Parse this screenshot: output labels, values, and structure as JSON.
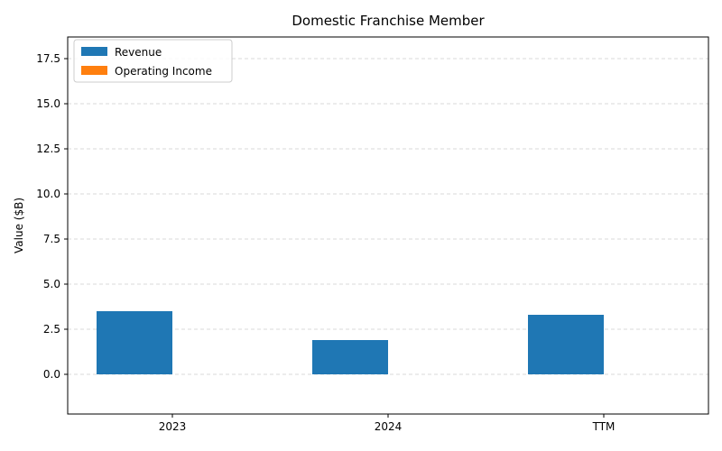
{
  "chart_data": {
    "type": "bar",
    "title": "Domestic Franchise Member",
    "xlabel": "",
    "ylabel": "Value ($B)",
    "categories": [
      "2023",
      "2024",
      "TTM"
    ],
    "series": [
      {
        "name": "Revenue",
        "values": [
          3.5,
          1.9,
          3.3
        ],
        "color": "#1f77b4"
      },
      {
        "name": "Operating Income",
        "values": [
          0,
          0,
          0
        ],
        "color": "#ff7f0e"
      }
    ],
    "ylim": [
      -2.2,
      18.7
    ],
    "yticks": [
      0.0,
      2.5,
      5.0,
      7.5,
      10.0,
      12.5,
      15.0,
      17.5
    ],
    "ytick_labels": [
      "0.0",
      "2.5",
      "5.0",
      "7.5",
      "10.0",
      "12.5",
      "15.0",
      "17.5"
    ],
    "grid": {
      "y": true,
      "x": false,
      "style": "dashed",
      "color": "#cccccc"
    },
    "legend": {
      "position": "top-left"
    }
  }
}
